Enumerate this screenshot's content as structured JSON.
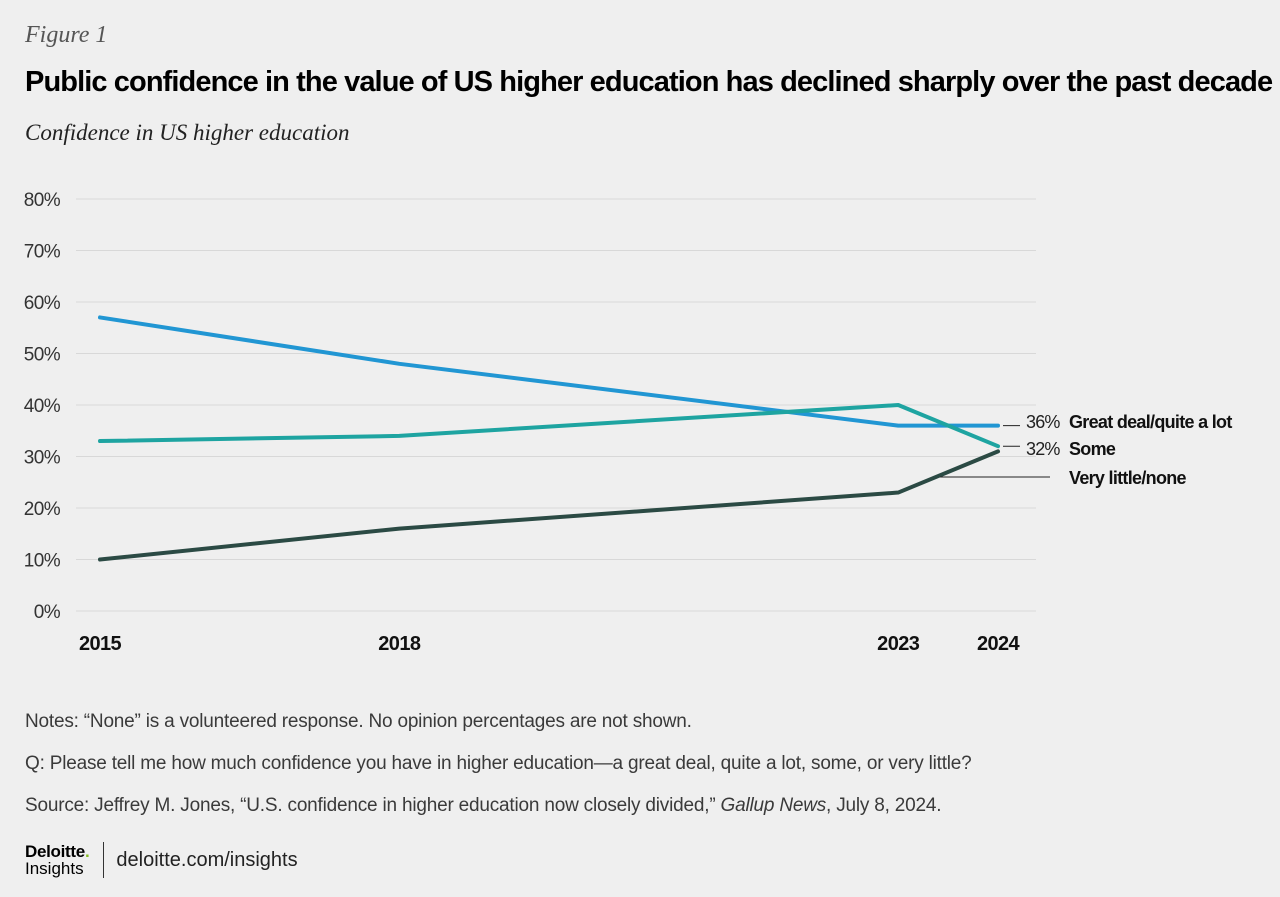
{
  "figure_label": "Figure 1",
  "title": "Public confidence in the value of US higher education has declined sharply over the past decade",
  "subtitle": "Confidence in US higher education",
  "colors": {
    "great_deal": "#2196d3",
    "some": "#1ea4a1",
    "very_little": "#2b4a44",
    "gridline": "#d8d8d8",
    "axis_text": "#333333"
  },
  "chart_data": {
    "type": "line",
    "title": "Confidence in US higher education",
    "xlabel": "",
    "ylabel": "",
    "x": [
      2015,
      2018,
      2023,
      2024
    ],
    "x_tick_labels": [
      "2015",
      "2018",
      "2023",
      "2024"
    ],
    "xlim": [
      2015,
      2024
    ],
    "ylim": [
      0,
      80
    ],
    "y_ticks": [
      0,
      10,
      20,
      30,
      40,
      50,
      60,
      70,
      80
    ],
    "y_tick_labels": [
      "0%",
      "10%",
      "20%",
      "30%",
      "40%",
      "50%",
      "60%",
      "70%",
      "80%"
    ],
    "grid": true,
    "series": [
      {
        "name": "Great deal/quite a lot",
        "values": [
          57,
          48,
          36,
          36
        ],
        "end_label": "36%",
        "color_key": "great_deal"
      },
      {
        "name": "Some",
        "values": [
          33,
          34,
          40,
          32
        ],
        "end_label": "32%",
        "color_key": "some"
      },
      {
        "name": "Very little/none",
        "values": [
          10,
          16,
          23,
          31
        ],
        "end_label": "",
        "color_key": "very_little"
      }
    ]
  },
  "notes": {
    "note": "Notes: “None” is a volunteered response. No opinion percentages are not shown.",
    "question": "Q: Please tell me how much confidence you have in higher education—a great deal, quite a lot, some, or very little?",
    "source_prefix": "Source: Jeffrey M. Jones, “U.S. confidence in higher education now closely divided,” ",
    "source_publication": "Gallup News",
    "source_suffix": ", July 8, 2024."
  },
  "footer": {
    "brand_name": "Deloitte",
    "brand_dot": ".",
    "brand_sub": "Insights",
    "url": "deloitte.com/insights"
  }
}
